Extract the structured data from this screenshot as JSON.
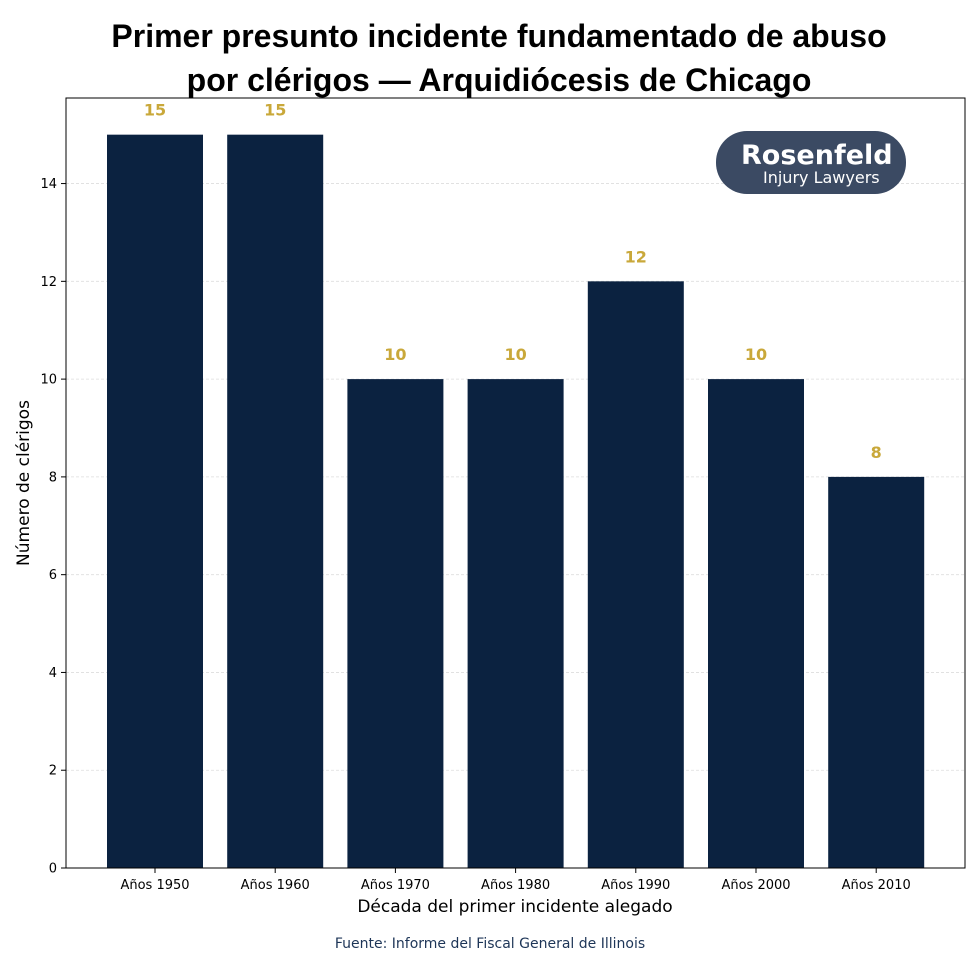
{
  "chart_data": {
    "type": "bar",
    "title_lines": [
      "Primer presunto incidente fundamentado de abuso",
      "por clérigos — Arquidiócesis de Chicago"
    ],
    "categories": [
      "Años 1950",
      "Años 1960",
      "Años 1970",
      "Años 1980",
      "Años 1990",
      "Años 2000",
      "Años 2010"
    ],
    "values": [
      15,
      15,
      10,
      10,
      12,
      10,
      8
    ],
    "xlabel": "Década del primer incidente alegado",
    "ylabel": "Número de clérigos",
    "ylim": [
      0,
      15.75
    ],
    "yticks": [
      0,
      2,
      4,
      6,
      8,
      10,
      12,
      14
    ],
    "grid": true,
    "bar_color": "#0b2240",
    "label_color": "#c9a83a",
    "source": "Fuente: Informe del Fiscal General de Illinois",
    "logo": {
      "name": "Rosenfeld",
      "subtitle": "Injury Lawyers",
      "background": "#3b4a63"
    }
  }
}
